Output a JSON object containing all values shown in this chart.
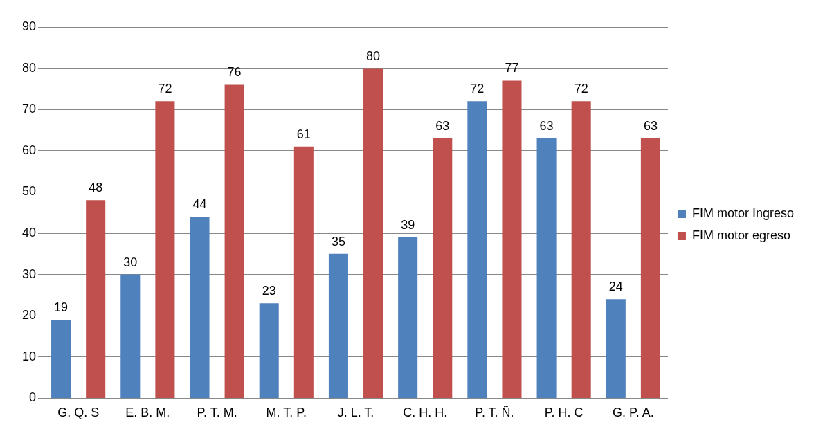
{
  "chart_data": {
    "type": "bar",
    "categories": [
      "G. Q. S",
      "E. B. M.",
      "P. T. M.",
      "M. T. P.",
      "J. L. T.",
      "C. H. H.",
      "P. T. Ñ.",
      "P. H. C",
      "G. P. A."
    ],
    "series": [
      {
        "name": "FIM motor Ingreso",
        "color": "#4f81bd",
        "values": [
          19,
          30,
          44,
          23,
          35,
          39,
          72,
          63,
          24
        ]
      },
      {
        "name": "FIM motor egreso",
        "color": "#c0504d",
        "values": [
          48,
          72,
          76,
          61,
          80,
          63,
          77,
          72,
          63
        ]
      }
    ],
    "ylim": [
      0,
      90
    ],
    "yticks": [
      0,
      10,
      20,
      30,
      40,
      50,
      60,
      70,
      80,
      90
    ],
    "grid": "y",
    "legend": "right",
    "data_labels": true
  }
}
